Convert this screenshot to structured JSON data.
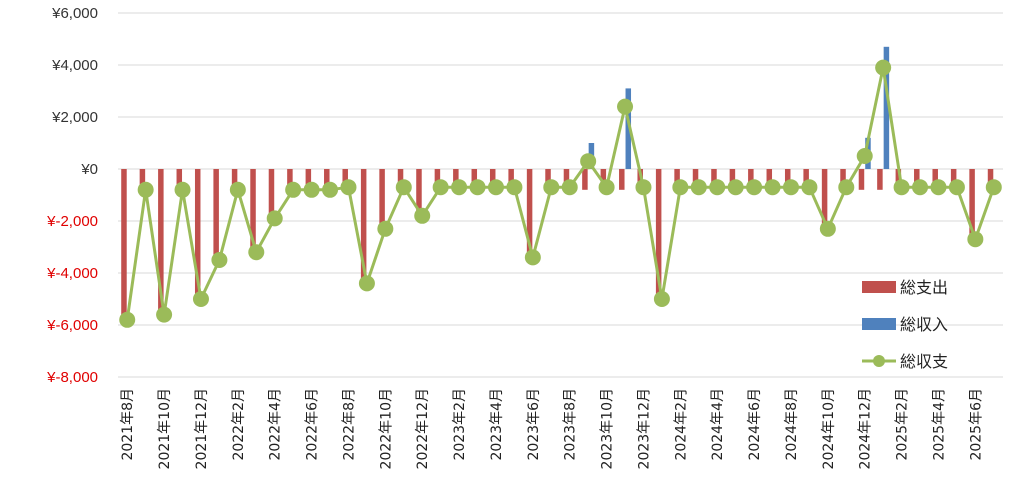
{
  "colors": {
    "expense": "#c0504d",
    "income": "#4f81bd",
    "balance": "#9bbb59",
    "positive_tick": "#333333",
    "negative_tick": "#e00000",
    "grid": "#d9d9d9"
  },
  "chart_data": {
    "type": "bar",
    "title": "",
    "xlabel": "",
    "ylabel": "",
    "ylim": [
      -8000,
      6000
    ],
    "yticks": [
      6000,
      4000,
      2000,
      0,
      -2000,
      -4000,
      -6000,
      -8000
    ],
    "ytick_labels": [
      "¥6,000",
      "¥4,000",
      "¥2,000",
      "¥0",
      "¥-2,000",
      "¥-4,000",
      "¥-6,000",
      "¥-8,000"
    ],
    "grid": true,
    "legend_position": "right",
    "categories": [
      "2021年8月",
      "2021年9月",
      "2021年10月",
      "2021年11月",
      "2021年12月",
      "2022年1月",
      "2022年2月",
      "2022年3月",
      "2022年4月",
      "2022年5月",
      "2022年6月",
      "2022年7月",
      "2022年8月",
      "2022年9月",
      "2022年10月",
      "2022年11月",
      "2022年12月",
      "2023年1月",
      "2023年2月",
      "2023年3月",
      "2023年4月",
      "2023年5月",
      "2023年6月",
      "2023年7月",
      "2023年8月",
      "2023年9月",
      "2023年10月",
      "2023年11月",
      "2023年12月",
      "2024年1月",
      "2024年2月",
      "2024年3月",
      "2024年4月",
      "2024年5月",
      "2024年6月",
      "2024年7月",
      "2024年8月",
      "2024年9月",
      "2024年10月",
      "2024年11月",
      "2024年12月",
      "2025年1月",
      "2025年2月",
      "2025年3月",
      "2025年4月",
      "2025年5月",
      "2025年6月",
      "2025年7月"
    ],
    "x_tick_labels": [
      "2021年8月",
      "2021年10月",
      "2021年12月",
      "2022年2月",
      "2022年4月",
      "2022年6月",
      "2022年8月",
      "2022年10月",
      "2022年12月",
      "2023年2月",
      "2023年4月",
      "2023年6月",
      "2023年8月",
      "2023年10月",
      "2023年12月",
      "2024年2月",
      "2024年4月",
      "2024年6月",
      "2024年8月",
      "2024年10月",
      "2024年12月",
      "2025年2月",
      "2025年4月",
      "2025年6月"
    ],
    "series": [
      {
        "name": "総支出",
        "type": "bar",
        "values": [
          -5800,
          -800,
          -5600,
          -800,
          -5000,
          -3500,
          -800,
          -3200,
          -1900,
          -800,
          -800,
          -800,
          -700,
          -4400,
          -2300,
          -700,
          -1800,
          -700,
          -700,
          -700,
          -700,
          -700,
          -3400,
          -700,
          -700,
          -800,
          -700,
          -800,
          -700,
          -5000,
          -700,
          -700,
          -700,
          -700,
          -700,
          -700,
          -700,
          -700,
          -2300,
          -700,
          -800,
          -800,
          -700,
          -700,
          -700,
          -700,
          -2700,
          -700
        ]
      },
      {
        "name": "総収入",
        "type": "bar",
        "values": [
          0,
          0,
          0,
          0,
          0,
          0,
          0,
          0,
          0,
          0,
          0,
          0,
          0,
          0,
          0,
          0,
          0,
          0,
          0,
          0,
          0,
          0,
          0,
          0,
          0,
          1000,
          0,
          3100,
          0,
          0,
          0,
          0,
          0,
          0,
          0,
          0,
          0,
          0,
          0,
          0,
          1200,
          4700,
          0,
          0,
          0,
          0,
          0,
          0
        ]
      },
      {
        "name": "総収支",
        "type": "line",
        "values": [
          -5800,
          -800,
          -5600,
          -800,
          -5000,
          -3500,
          -800,
          -3200,
          -1900,
          -800,
          -800,
          -800,
          -700,
          -4400,
          -2300,
          -700,
          -1800,
          -700,
          -700,
          -700,
          -700,
          -700,
          -3400,
          -700,
          -700,
          300,
          -700,
          2400,
          -700,
          -5000,
          -700,
          -700,
          -700,
          -700,
          -700,
          -700,
          -700,
          -700,
          -2300,
          -700,
          500,
          3900,
          -700,
          -700,
          -700,
          -700,
          -2700,
          -700
        ]
      }
    ]
  }
}
